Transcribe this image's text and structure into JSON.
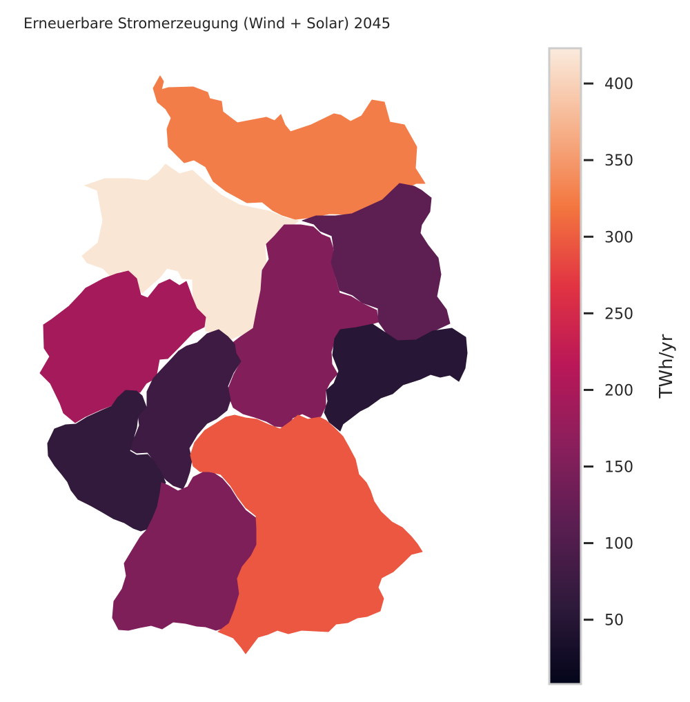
{
  "title": "Erneuerbare Stromerzeugung (Wind + Solar) 2045",
  "colorbar": {
    "label": "TWh/yr",
    "min": 8,
    "max": 423,
    "ticks": [
      "50",
      "100",
      "150",
      "200",
      "250",
      "300",
      "350",
      "400"
    ],
    "stops": [
      "#03051a",
      "#2f1a3b",
      "#5a1e51",
      "#8a1f5c",
      "#b91758",
      "#e13342",
      "#f3763f",
      "#f6b28c",
      "#faebdd"
    ]
  },
  "chart_data": {
    "type": "choropleth",
    "title": "Erneuerbare Stromerzeugung (Wind + Solar) 2045",
    "value_label": "TWh/yr",
    "range": [
      8,
      423
    ],
    "regions": [
      {
        "id": "SH-MV-HH",
        "value": 325
      },
      {
        "id": "NI-HB",
        "value": 418
      },
      {
        "id": "NW",
        "value": 193
      },
      {
        "id": "ST",
        "value": 160
      },
      {
        "id": "BB-BE",
        "value": 115
      },
      {
        "id": "SN",
        "value": 50
      },
      {
        "id": "HE",
        "value": 78
      },
      {
        "id": "TH-ST-S",
        "value": 155
      },
      {
        "id": "RP-SL",
        "value": 63
      },
      {
        "id": "BW",
        "value": 152
      },
      {
        "id": "BY",
        "value": 295
      }
    ]
  }
}
